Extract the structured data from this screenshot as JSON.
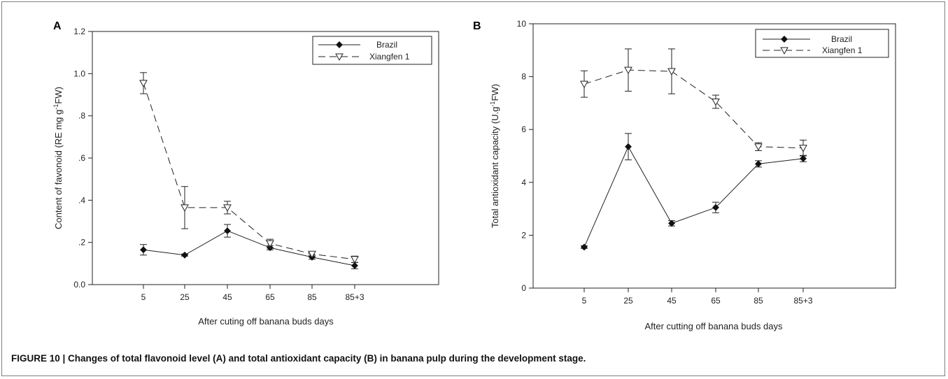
{
  "caption": "FIGURE 10 | Changes of total flavonoid level (A) and total antioxidant capacity (B) in banana pulp during the development stage.",
  "chart_data": [
    {
      "type": "line",
      "panel": "A",
      "categories": [
        "5",
        "25",
        "45",
        "65",
        "85",
        "85+3"
      ],
      "xlabel": "After cuting off banana buds  days",
      "ylabel": "Content of favonoid (RE mg g",
      "ylabel_sup": "-1",
      "ylabel_tail": "FW)",
      "ylim": [
        0,
        1.2
      ],
      "yticks": [
        0.0,
        0.2,
        0.4,
        0.6,
        0.8,
        1.0,
        1.2
      ],
      "ytick_labels": [
        "0.0",
        ".2",
        ".4",
        ".6",
        ".8",
        "1.0",
        "1.2"
      ],
      "legend_position": "top-right",
      "series": [
        {
          "name": "Brazil",
          "marker": "filled-diamond",
          "line": "solid",
          "values": [
            0.165,
            0.14,
            0.255,
            0.175,
            0.13,
            0.09
          ],
          "errors": [
            0.025,
            0.005,
            0.03,
            0.01,
            0.01,
            0.015
          ]
        },
        {
          "name": "Xiangfen 1",
          "marker": "open-triangle-down",
          "line": "dashed",
          "values": [
            0.955,
            0.365,
            0.365,
            0.195,
            0.145,
            0.12
          ],
          "errors": [
            0.05,
            0.1,
            0.03,
            0.02,
            0.01,
            0.015
          ]
        }
      ]
    },
    {
      "type": "line",
      "panel": "B",
      "categories": [
        "5",
        "25",
        "45",
        "65",
        "85",
        "85+3"
      ],
      "xlabel": "After cutting off banana buds days",
      "ylabel": "Total antioxidant capacity (U.g",
      "ylabel_sup": "-1",
      "ylabel_tail": "FW)",
      "ylim": [
        0,
        10
      ],
      "yticks": [
        0,
        2,
        4,
        6,
        8,
        10
      ],
      "ytick_labels": [
        "0",
        "2",
        "4",
        "6",
        "8",
        "10"
      ],
      "legend_position": "top-right",
      "series": [
        {
          "name": "Brazil",
          "marker": "filled-diamond",
          "line": "solid",
          "values": [
            1.55,
            5.35,
            2.45,
            3.05,
            4.7,
            4.9
          ],
          "errors": [
            0.05,
            0.5,
            0.1,
            0.2,
            0.12,
            0.12
          ]
        },
        {
          "name": "Xiangfen 1",
          "marker": "open-triangle-down",
          "line": "dashed",
          "values": [
            7.72,
            8.25,
            8.2,
            7.05,
            5.35,
            5.3
          ],
          "errors": [
            0.5,
            0.8,
            0.85,
            0.25,
            0.15,
            0.3
          ]
        }
      ]
    }
  ]
}
